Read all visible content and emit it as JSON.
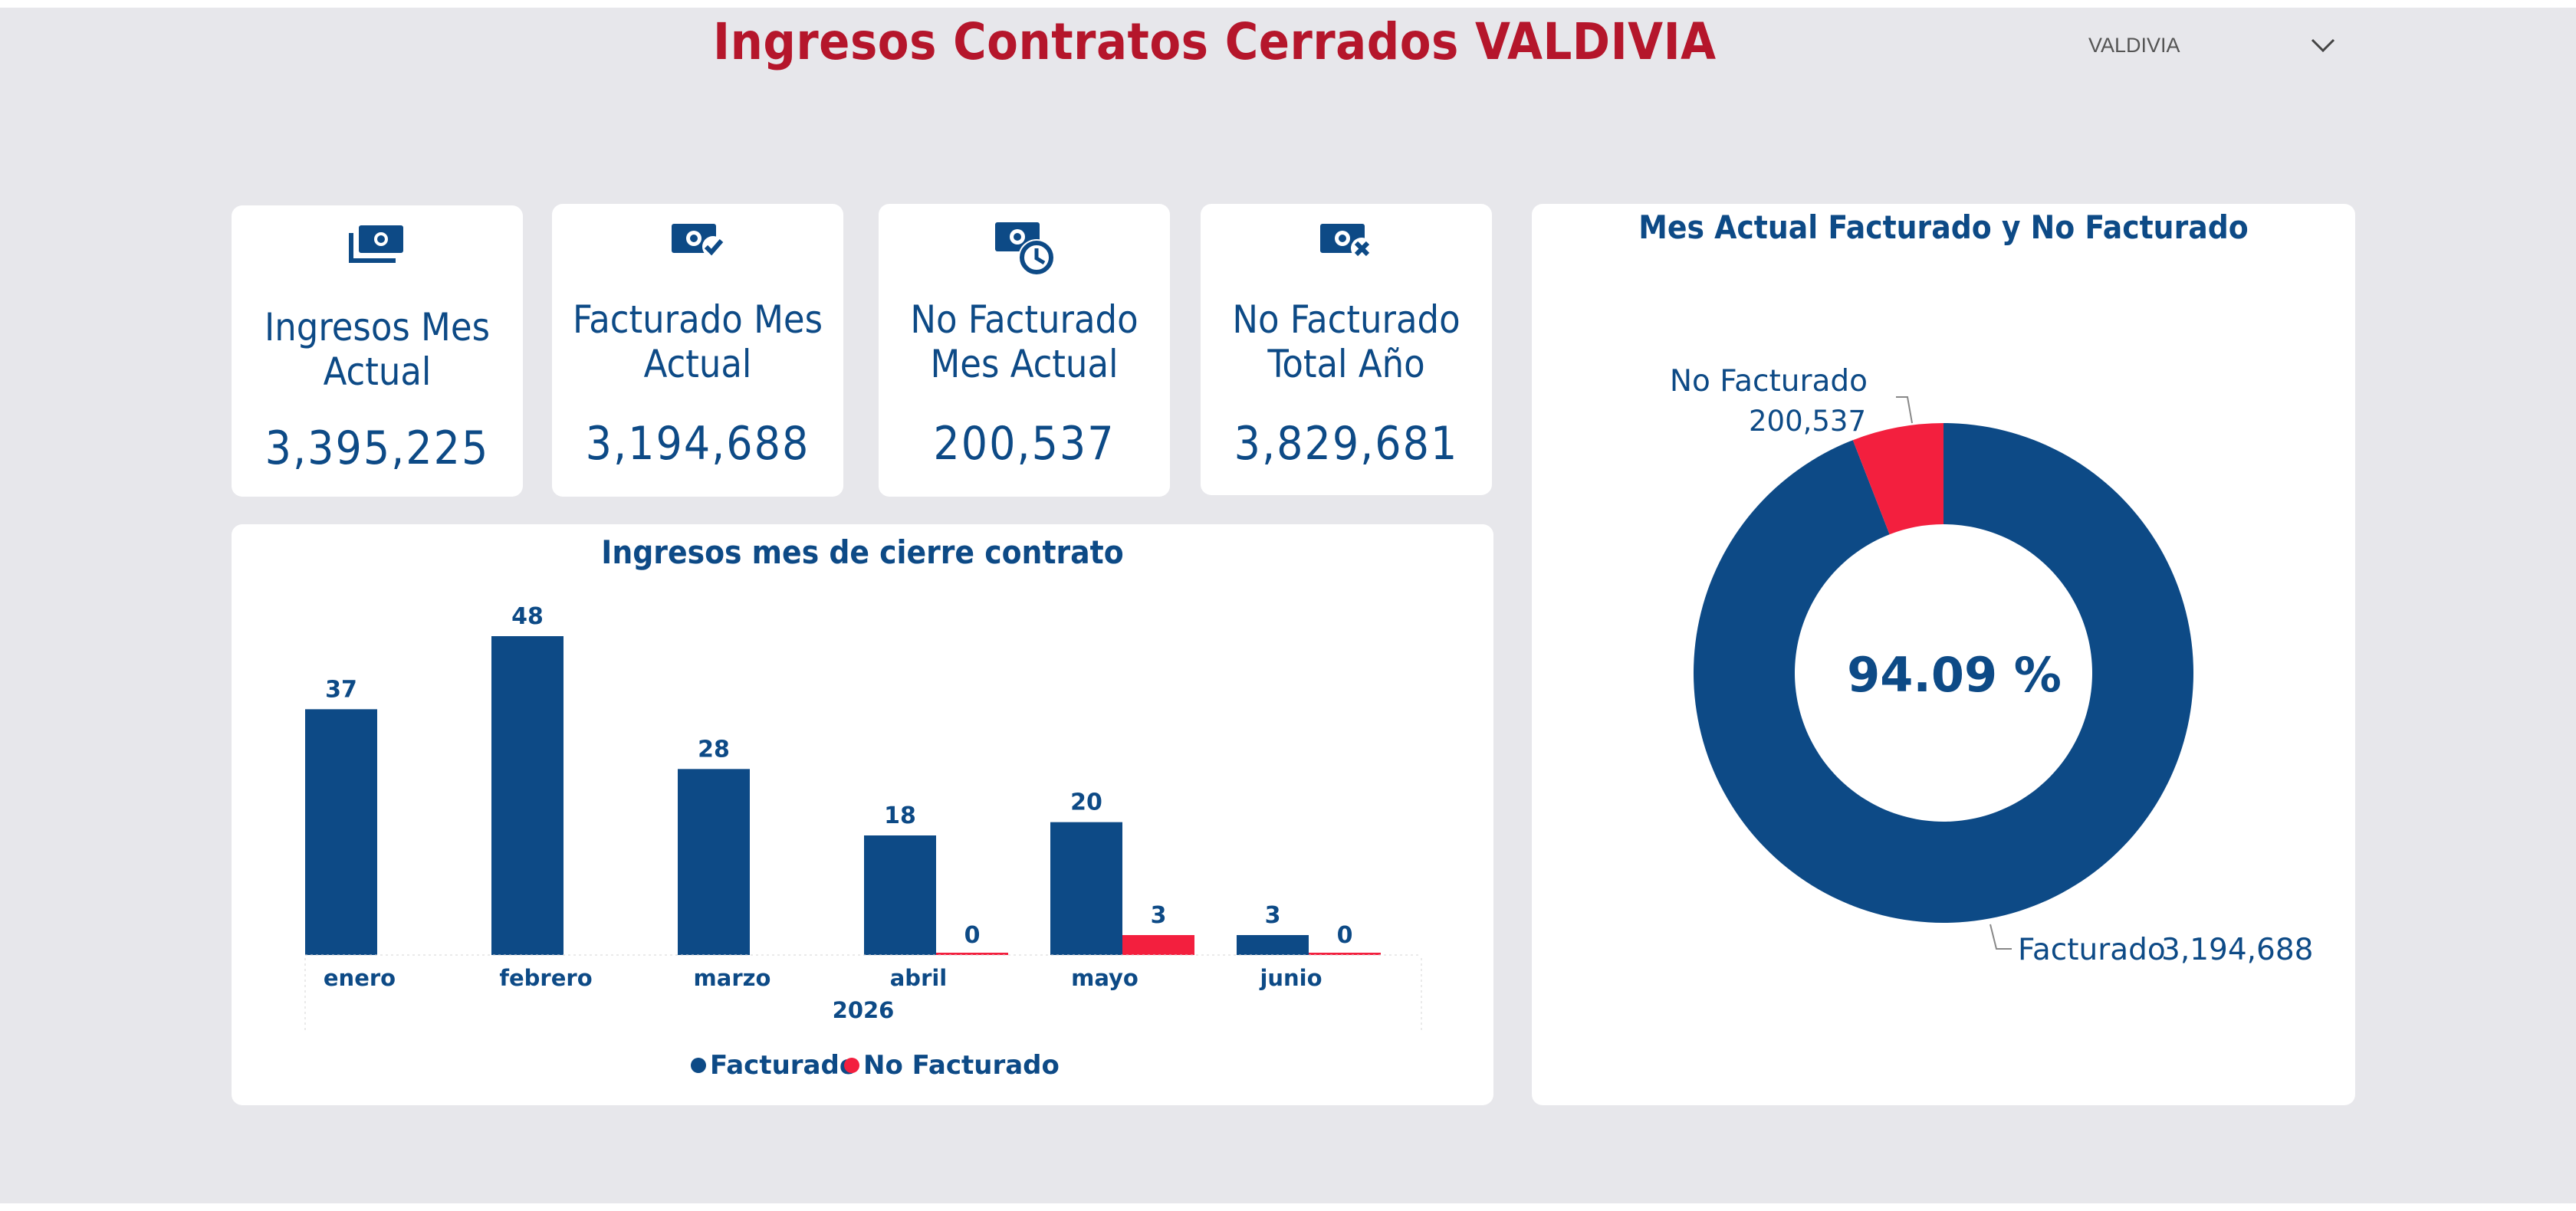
{
  "header": {
    "title": "Ingresos Contratos Cerrados  VALDIVIA",
    "slicer_value": "VALDIVIA",
    "slicer_icon": "chevron-down-icon"
  },
  "colors": {
    "title": "#b5162b",
    "primary": "#0d4a86",
    "accent": "#f31f3e",
    "background": "#e7e7eb"
  },
  "kpis": [
    {
      "label": "Ingresos Mes Actual",
      "value": "3,395,225",
      "icon": "money-stack-icon"
    },
    {
      "label": "Facturado Mes Actual",
      "value": "3,194,688",
      "icon": "money-check-icon"
    },
    {
      "label": "No Facturado Mes Actual",
      "value": "200,537",
      "icon": "money-clock-icon"
    },
    {
      "label": "No Facturado Total Año",
      "value": "3,829,681",
      "icon": "money-x-icon"
    }
  ],
  "chart_data": [
    {
      "type": "bar",
      "title": "Ingresos mes de cierre contrato",
      "categories": [
        "enero",
        "febrero",
        "marzo",
        "abril",
        "mayo",
        "junio"
      ],
      "x_group_label": "2026",
      "series": [
        {
          "name": "Facturado",
          "color": "#0d4a86",
          "values": [
            37,
            48,
            28,
            18,
            20,
            3
          ]
        },
        {
          "name": "No Facturado",
          "color": "#f31f3e",
          "values": [
            null,
            null,
            null,
            0,
            3,
            0
          ]
        }
      ],
      "ylim": [
        0,
        48
      ],
      "grid": false,
      "legend": "bottom-center"
    },
    {
      "type": "pie",
      "title": "Mes Actual Facturado y No Facturado",
      "donut": true,
      "center_label": "94.09 %",
      "slices": [
        {
          "name": "Facturado",
          "value": 3194688,
          "label": "3,194,688",
          "color": "#0d4a86"
        },
        {
          "name": "No Facturado",
          "value": 200537,
          "label": "200,537",
          "color": "#f31f3e"
        }
      ]
    }
  ]
}
